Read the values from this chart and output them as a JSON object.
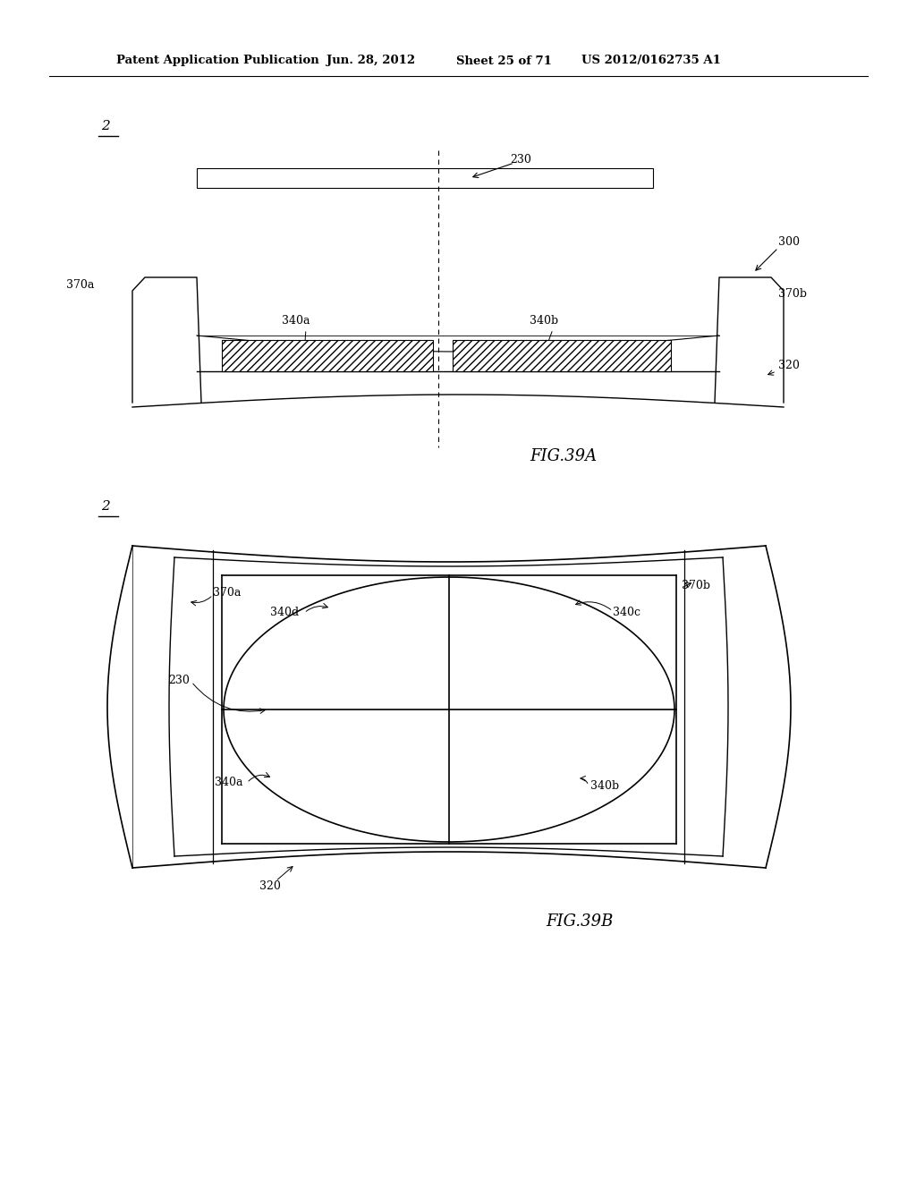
{
  "bg_color": "#ffffff",
  "header_text": "Patent Application Publication",
  "header_date": "Jun. 28, 2012",
  "header_sheet": "Sheet 25 of 71",
  "header_patent": "US 2012/0162735 A1",
  "fig39a_label": "FIG.39A",
  "fig39b_label": "FIG.39B"
}
